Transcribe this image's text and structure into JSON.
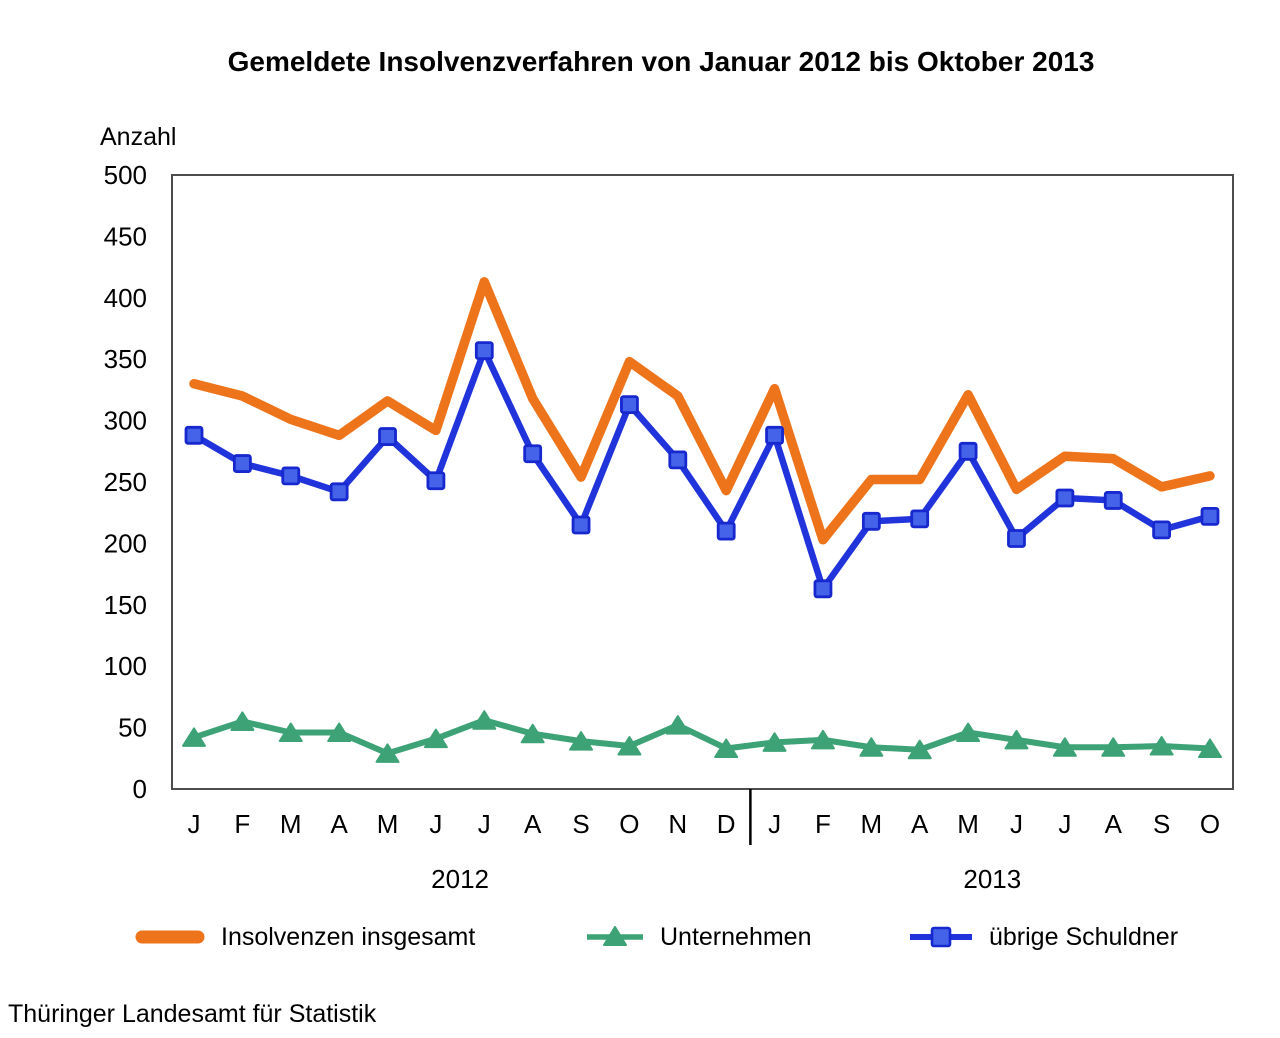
{
  "title": "Gemeldete Insolvenzverfahren von Januar 2012 bis Oktober 2013",
  "y_axis_unit": "Anzahl",
  "footer": "Thüringer Landesamt für Statistik",
  "chart_data": {
    "type": "line",
    "x_months": [
      "J",
      "F",
      "M",
      "A",
      "M",
      "J",
      "J",
      "A",
      "S",
      "O",
      "N",
      "D",
      "J",
      "F",
      "M",
      "A",
      "M",
      "J",
      "J",
      "A",
      "S",
      "O"
    ],
    "year_groups": [
      {
        "label": "2012",
        "start": 0,
        "end": 11
      },
      {
        "label": "2013",
        "start": 12,
        "end": 21
      }
    ],
    "ylabel": "Anzahl",
    "ylim": [
      0,
      500
    ],
    "ytick_step": 50,
    "grid": false,
    "legend_position": "bottom",
    "series": [
      {
        "name": "Insolvenzen insgesamt",
        "color": "#EE741B",
        "marker": "none",
        "values": [
          330,
          320,
          301,
          288,
          316,
          292,
          413,
          318,
          254,
          348,
          320,
          243,
          326,
          203,
          252,
          252,
          321,
          244,
          271,
          269,
          246,
          255
        ]
      },
      {
        "name": "Unternehmen",
        "color": "#3EA277",
        "marker": "triangle",
        "values": [
          42,
          55,
          46,
          46,
          29,
          41,
          56,
          45,
          39,
          35,
          52,
          33,
          38,
          40,
          34,
          32,
          46,
          40,
          34,
          34,
          35,
          33
        ]
      },
      {
        "name": "übrige Schuldner",
        "color": "#2134DB",
        "marker": "square",
        "marker_fill": "#4463E9",
        "marker_stroke": "#1728CF",
        "values": [
          288,
          265,
          255,
          242,
          287,
          251,
          357,
          273,
          215,
          313,
          268,
          210,
          288,
          163,
          218,
          220,
          275,
          204,
          237,
          235,
          211,
          222
        ]
      }
    ]
  }
}
